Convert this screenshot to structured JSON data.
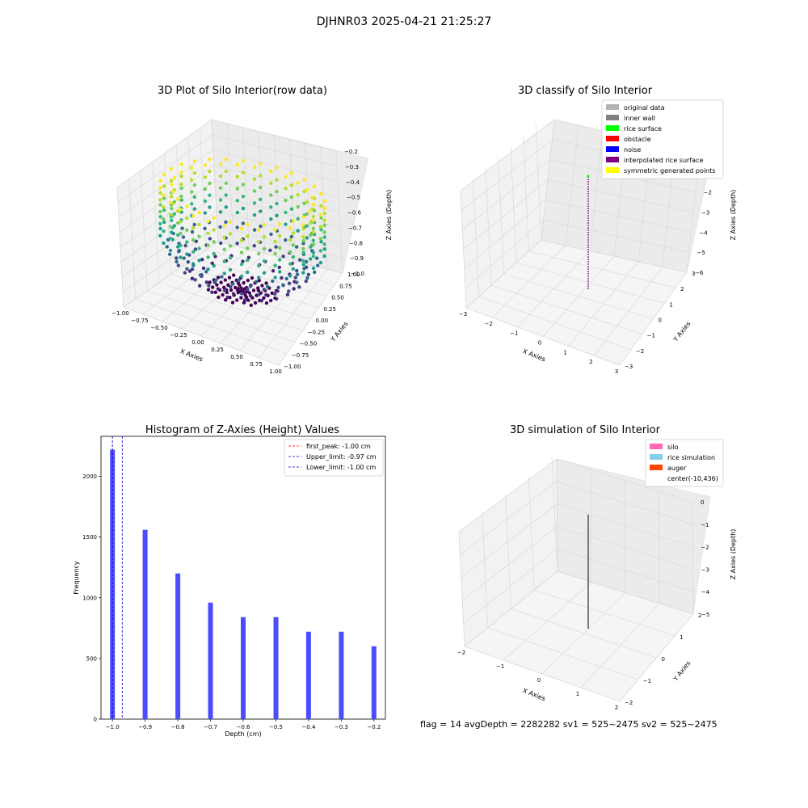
{
  "suptitle": "DJHNR03 2025-04-21 21:25:27",
  "status_line": "flag = 14   avgDepth = 2282282 sv1 = 525~2475  sv2 = 525~2475",
  "colors": {
    "histogram_bar": "#4c4cff",
    "first_peak_line": "#ff0000",
    "limit_line": "#0000cc"
  },
  "chart_data": [
    {
      "type": "scatter3d",
      "title": "3D Plot of Silo Interior(row data)",
      "xlabel": "X Axies",
      "ylabel": "Y Axies",
      "zlabel": "Z Axies (Depth)",
      "xticks": [
        "−1.00",
        "−0.75",
        "−0.50",
        "−0.25",
        "0.00",
        "0.25",
        "0.50",
        "0.75",
        "1.00"
      ],
      "yticks": [
        "−1.00",
        "−0.75",
        "−0.50",
        "−0.25",
        "0.00",
        "0.25",
        "0.50",
        "0.75",
        "1.00"
      ],
      "zticks": [
        "−0.2",
        "−0.3",
        "−0.4",
        "−0.5",
        "−0.6",
        "−0.7",
        "−0.8",
        "−0.9",
        "−1.0"
      ],
      "xlim": [
        -1,
        1
      ],
      "ylim": [
        -1,
        1
      ],
      "zlim": [
        -1.05,
        -0.15
      ],
      "colormap": "viridis",
      "z_levels": [
        -1.0,
        -0.9,
        -0.8,
        -0.7,
        -0.6,
        -0.5,
        -0.4,
        -0.3,
        -0.2
      ]
    },
    {
      "type": "scatter3d",
      "title": "3D classify of Silo Interior",
      "xlabel": "X Axies",
      "ylabel": "Y Axies",
      "zlabel": "Z Axies (Depth)",
      "xticks": [
        "−3",
        "−2",
        "−1",
        "0",
        "1",
        "2",
        "3"
      ],
      "yticks": [
        "−3",
        "−2",
        "−1",
        "0",
        "1",
        "2",
        "3"
      ],
      "zticks": [
        "0",
        "−1",
        "−2",
        "−3",
        "−4",
        "−5",
        "−6"
      ],
      "legend_loc": "upper right",
      "legend": [
        {
          "label": "original data",
          "color": "#b3b3b3"
        },
        {
          "label": "inner wall",
          "color": "#808080"
        },
        {
          "label": "rice surface",
          "color": "#00ff00"
        },
        {
          "label": "obstacle",
          "color": "#ff0000"
        },
        {
          "label": "noise",
          "color": "#0000ff"
        },
        {
          "label": "interpolated rice surface",
          "color": "#800080"
        },
        {
          "label": "symmetric generated points",
          "color": "#ffff00"
        }
      ]
    },
    {
      "type": "bar",
      "title": "Histogram of Z-Axies (Height) Values",
      "xlabel": "Depth (cm)",
      "ylabel": "Frequency",
      "categories": [
        -1.0,
        -0.9,
        -0.8,
        -0.7,
        -0.6,
        -0.5,
        -0.4,
        -0.3,
        -0.2
      ],
      "values": [
        2220,
        1560,
        1200,
        960,
        840,
        840,
        720,
        720,
        600
      ],
      "xlim": [
        -1.035,
        -0.165
      ],
      "ylim": [
        0,
        2330
      ],
      "xticks": [
        -1.0,
        -0.9,
        -0.8,
        -0.7,
        -0.6,
        -0.5,
        -0.4,
        -0.3,
        -0.2
      ],
      "xtick_labels": [
        "−1.0",
        "−0.9",
        "−0.8",
        "−0.7",
        "−0.6",
        "−0.5",
        "−0.4",
        "−0.3",
        "−0.2"
      ],
      "yticks": [
        0,
        500,
        1000,
        1500,
        2000
      ],
      "ytick_labels": [
        "0",
        "500",
        "1000",
        "1500",
        "2000"
      ],
      "vlines": [
        {
          "x": -1.0,
          "label": "first_peak: -1.00 cm",
          "color": "#ff0000"
        },
        {
          "x": -0.97,
          "label": "Upper_limit: -0.97 cm",
          "color": "#0000cc"
        },
        {
          "x": -1.0,
          "label": "Lower_limit: -1.00 cm",
          "color": "#0000cc"
        }
      ],
      "legend_loc": "upper right"
    },
    {
      "type": "scatter3d",
      "title": "3D simulation of Silo Interior",
      "xlabel": "X Axies",
      "ylabel": "Y Axies",
      "zlabel": "Z Axies (Depth)",
      "xticks": [
        "−2",
        "−1",
        "0",
        "1",
        "2"
      ],
      "yticks": [
        "−2",
        "−1",
        "0",
        "1",
        "2"
      ],
      "zticks": [
        "0",
        "−1",
        "−2",
        "−3",
        "−4",
        "−5"
      ],
      "legend_loc": "upper right",
      "legend": [
        {
          "label": "silo",
          "color": "#ff69b4"
        },
        {
          "label": "rice simulation",
          "color": "#87ceeb"
        },
        {
          "label": "auger",
          "color": "#ff4500"
        },
        {
          "label": "center(-10,436)",
          "color": "none"
        }
      ]
    }
  ]
}
